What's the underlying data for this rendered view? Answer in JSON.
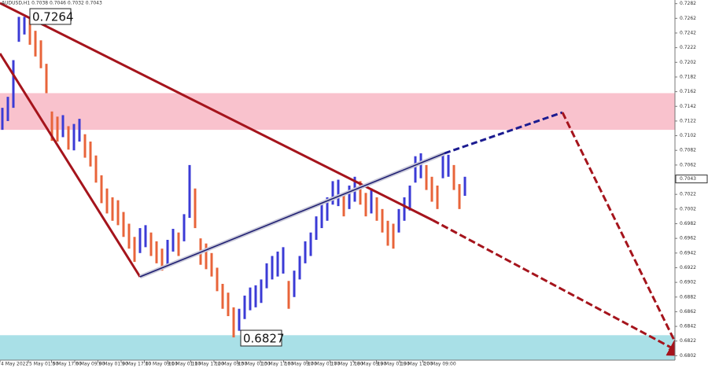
{
  "chart_data": {
    "type": "bar-chart-hl",
    "subtitle": "AUDUSD,H1 0.7038 0.7046 0.7032 0.7043",
    "current_price": 0.7043,
    "annotations": [
      "0.7264",
      "0.6827"
    ],
    "up_color": "#3b3bd6",
    "down_color": "#e8643a",
    "zones": [
      {
        "range": [
          0.711,
          0.716
        ],
        "color": "#f9c2cd"
      },
      {
        "range": [
          0.6796,
          0.683
        ],
        "color": "#a9e0e7"
      }
    ],
    "ylim": [
      0.6796,
      0.7287
    ],
    "yticks": [
      0.7282,
      0.7262,
      0.7242,
      0.7222,
      0.7202,
      0.7182,
      0.7162,
      0.7142,
      0.7122,
      0.7102,
      0.7082,
      0.7062,
      0.7042,
      0.7022,
      0.7002,
      0.6982,
      0.6962,
      0.6942,
      0.6922,
      0.6902,
      0.6882,
      0.6862,
      0.6842,
      0.6822,
      0.6802
    ],
    "x_labels": [
      "4 May 2022",
      "5 May 01:00",
      "5 May 17:00",
      "6 May 09:00",
      "9 May 01:00",
      "9 May 17:00",
      "10 May 09:00",
      "11 May 01:00",
      "11 May 17:00",
      "12 May 09:00",
      "13 May 01:00",
      "13 May 17:00",
      "16 May 09:00",
      "17 May 01:00",
      "17 May 17:00",
      "18 May 09:00",
      "19 May 01:00",
      "19 May 17:00",
      "20 May 09:00"
    ],
    "high": [
      0.714,
      0.7155,
      0.7205,
      0.7264,
      0.7264,
      0.7262,
      0.7245,
      0.7232,
      0.72,
      0.7135,
      0.7128,
      0.713,
      0.7115,
      0.7118,
      0.7125,
      0.7104,
      0.7094,
      0.7075,
      0.7048,
      0.703,
      0.7018,
      0.7014,
      0.6998,
      0.6982,
      0.6964,
      0.6976,
      0.698,
      0.697,
      0.6958,
      0.6948,
      0.696,
      0.6975,
      0.697,
      0.6995,
      0.7062,
      0.703,
      0.6962,
      0.6955,
      0.6942,
      0.6922,
      0.69,
      0.6888,
      0.6868,
      0.6866,
      0.6884,
      0.6895,
      0.6898,
      0.6906,
      0.6928,
      0.6938,
      0.6944,
      0.695,
      0.6904,
      0.6918,
      0.6938,
      0.6958,
      0.697,
      0.6992,
      0.7008,
      0.7018,
      0.704,
      0.7042,
      0.7024,
      0.7034,
      0.7046,
      0.704,
      0.7024,
      0.703,
      0.7018,
      0.7002,
      0.6986,
      0.6982,
      0.7002,
      0.7018,
      0.7034,
      0.7074,
      0.7078,
      0.7062,
      0.7046,
      0.7034,
      0.7078,
      0.7076,
      0.7062,
      0.7036,
      0.7046
    ],
    "low": [
      0.711,
      0.7122,
      0.714,
      0.723,
      0.724,
      0.7226,
      0.721,
      0.7194,
      0.716,
      0.7095,
      0.7094,
      0.71,
      0.7083,
      0.7082,
      0.7094,
      0.7072,
      0.706,
      0.7038,
      0.701,
      0.6996,
      0.6986,
      0.698,
      0.6964,
      0.6948,
      0.693,
      0.6942,
      0.695,
      0.6938,
      0.6928,
      0.6918,
      0.6926,
      0.6944,
      0.6938,
      0.6958,
      0.699,
      0.6976,
      0.6926,
      0.692,
      0.691,
      0.689,
      0.6866,
      0.6856,
      0.6827,
      0.6836,
      0.6852,
      0.6864,
      0.6868,
      0.6874,
      0.6894,
      0.6906,
      0.691,
      0.6914,
      0.6866,
      0.6882,
      0.6906,
      0.6928,
      0.6938,
      0.696,
      0.6976,
      0.6986,
      0.7008,
      0.7006,
      0.6992,
      0.7002,
      0.7012,
      0.7008,
      0.6992,
      0.6996,
      0.6986,
      0.697,
      0.6952,
      0.6948,
      0.697,
      0.6986,
      0.7,
      0.7038,
      0.7044,
      0.7028,
      0.7012,
      0.7002,
      0.7044,
      0.7046,
      0.7028,
      0.7002,
      0.702
    ]
  }
}
